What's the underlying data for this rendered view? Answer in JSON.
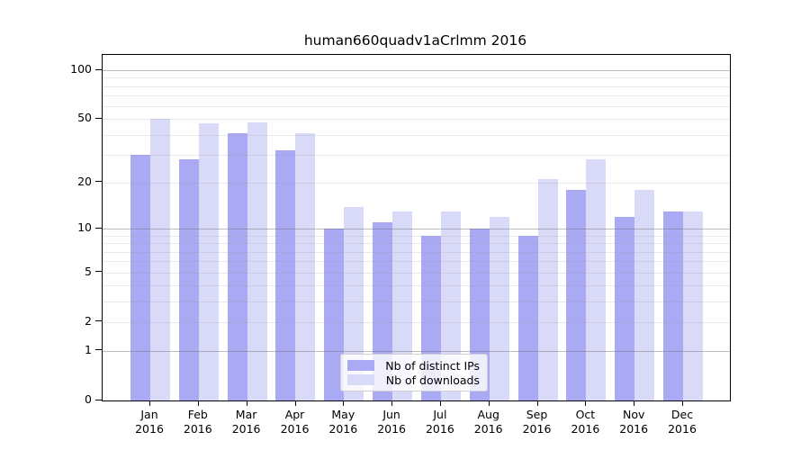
{
  "chart_data": {
    "type": "bar",
    "title": "human660quadv1aCrlmm 2016",
    "categories": [
      "Jan",
      "Feb",
      "Mar",
      "Apr",
      "May",
      "Jun",
      "Jul",
      "Aug",
      "Sep",
      "Oct",
      "Nov",
      "Dec"
    ],
    "category_year": "2016",
    "series": [
      {
        "name": "Nb of distinct IPs",
        "color": "#a9a9f4",
        "values": [
          30,
          28,
          41,
          32,
          10,
          11,
          9,
          10,
          9,
          18,
          12,
          13
        ]
      },
      {
        "name": "Nb of downloads",
        "color": "#d9d9f8",
        "values": [
          50,
          47,
          48,
          41,
          14,
          13,
          13,
          12,
          21,
          28,
          18,
          13
        ]
      }
    ],
    "y_axis": {
      "scale": "log1p",
      "ticks": [
        0,
        1,
        2,
        5,
        10,
        20,
        50,
        100
      ],
      "max": 124,
      "major_gridlines": [
        1,
        10,
        100
      ],
      "minor_gridlines": [
        2,
        3,
        4,
        5,
        6,
        7,
        8,
        9,
        20,
        30,
        40,
        50,
        60,
        70,
        80,
        90
      ]
    },
    "legend_position": "bottom-center-inside",
    "grid": "on",
    "xlabel": "",
    "ylabel": ""
  }
}
